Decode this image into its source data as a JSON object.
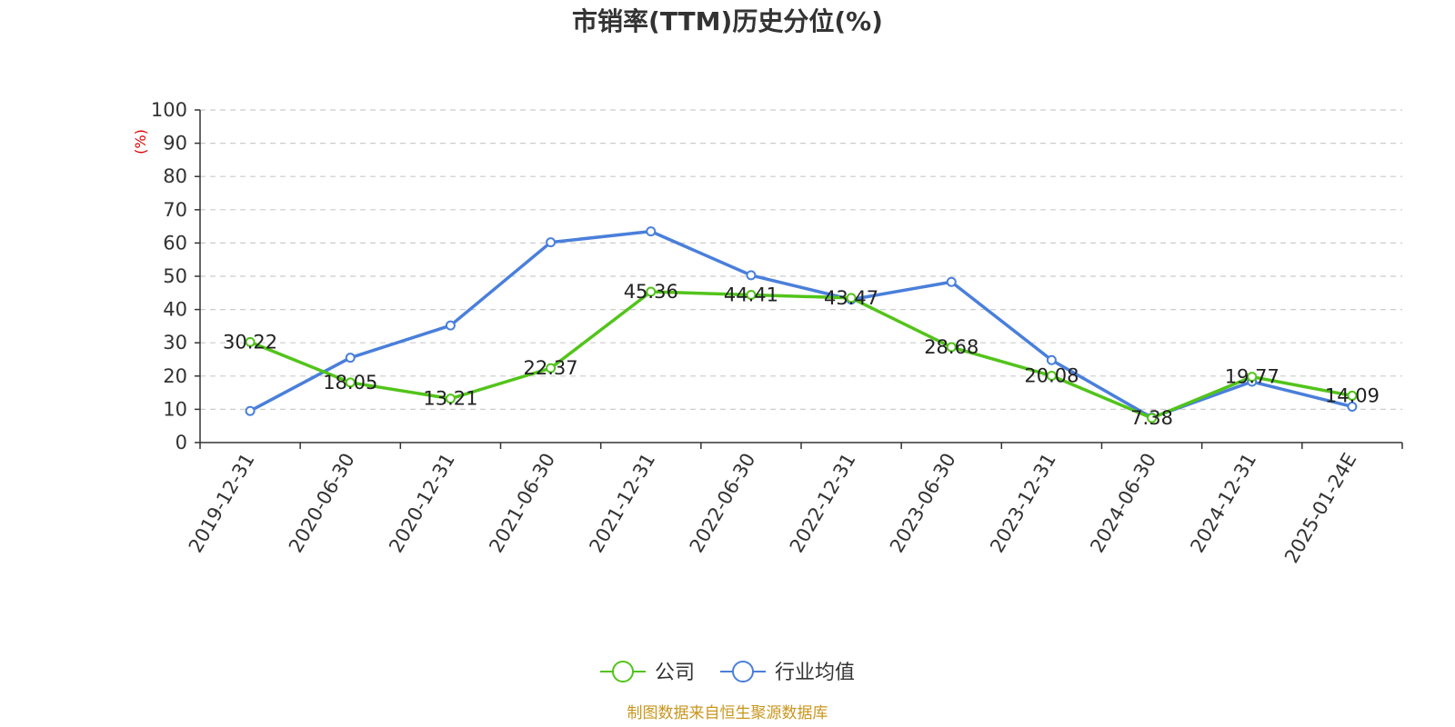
{
  "chart_data": {
    "type": "line",
    "title": "市销率(TTM)历史分位(%)",
    "ylabel": "(%)",
    "ylim": [
      0,
      100
    ],
    "yticks": [
      0,
      10,
      20,
      30,
      40,
      50,
      60,
      70,
      80,
      90,
      100
    ],
    "grid": true,
    "legend_position": "bottom-center",
    "categories": [
      "2019-12-31",
      "2020-06-30",
      "2020-12-31",
      "2021-06-30",
      "2021-12-31",
      "2022-06-30",
      "2022-12-31",
      "2023-06-30",
      "2023-12-31",
      "2024-06-30",
      "2024-12-31",
      "2025-01-24E"
    ],
    "series": [
      {
        "name": "公司",
        "color": "#52c41a",
        "values": [
          30.22,
          18.05,
          13.21,
          22.37,
          45.36,
          44.41,
          43.47,
          28.68,
          20.08,
          7.38,
          19.77,
          14.09
        ],
        "labels": [
          "30.22",
          "18.05",
          "13.21",
          "22.37",
          "45.36",
          "44.41",
          "43.47",
          "28.68",
          "20.08",
          "7.38",
          "19.77",
          "14.09"
        ]
      },
      {
        "name": "行业均值",
        "color": "#4a7fdb",
        "values": [
          9.5,
          25.5,
          35.2,
          60.2,
          63.5,
          50.3,
          43.0,
          48.3,
          24.8,
          7.5,
          18.3,
          10.8
        ]
      }
    ]
  },
  "source": "制图数据来自恒生聚源数据库",
  "colors": {
    "axis": "#333333",
    "grid": "#cccccc",
    "ylabel": "#e00000",
    "source": "#c8961e"
  }
}
